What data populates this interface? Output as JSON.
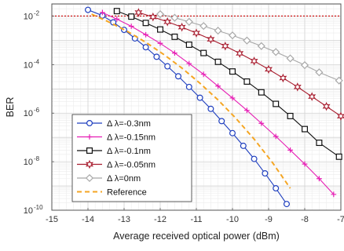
{
  "chart_data": {
    "type": "line",
    "title": "",
    "xlabel": "Average received optical power (dBm)",
    "ylabel": "BER",
    "xlim": [
      -15,
      -7
    ],
    "ylim_exponent": [
      -10,
      -1.5
    ],
    "y_scale": "log",
    "grid": true,
    "legend_placement": "lower-left",
    "x_ticks": [
      "-15",
      "-14",
      "-13",
      "-12",
      "-11",
      "-10",
      "-9",
      "-8",
      "-7"
    ],
    "y_ticks": [
      {
        "base": "10",
        "exp": "-2",
        "value": 0.01
      },
      {
        "base": "10",
        "exp": "-4",
        "value": 0.0001
      },
      {
        "base": "10",
        "exp": "-6",
        "value": 1e-06
      },
      {
        "base": "10",
        "exp": "-8",
        "value": 1e-08
      },
      {
        "base": "10",
        "exp": "-10",
        "value": 1e-10
      }
    ],
    "threshold": {
      "y": 0.01,
      "color": "#cc0000"
    },
    "series": [
      {
        "name": "Δ λ=-0.3nm",
        "color": "#1f3fbf",
        "marker": "circle",
        "dashed": false,
        "x": [
          -14.0,
          -13.6,
          -13.3,
          -13.0,
          -12.7,
          -12.4,
          -12.1,
          -11.8,
          -11.5,
          -11.2,
          -10.9,
          -10.6,
          -10.3,
          -10.0,
          -9.7,
          -9.4,
          -9.1,
          -8.8,
          -8.5,
          -8.2,
          -7.9,
          -7.55
        ],
        "y": [
          0.018,
          0.0105,
          0.0055,
          0.0027,
          0.0012,
          0.00052,
          0.00021,
          8.5e-05,
          3.3e-05,
          1.2e-05,
          4.3e-06,
          1.5e-06,
          4.7e-07,
          1.5e-07,
          4.5e-08,
          1.3e-08,
          3.3e-09,
          8e-10,
          1.8e-10,
          3.5e-11,
          6.5e-12,
          9e-13
        ]
      },
      {
        "name": "Δ λ=-0.15nm",
        "color": "#e61eb4",
        "marker": "plus",
        "dashed": false,
        "x": [
          -13.6,
          -13.2,
          -12.8,
          -12.4,
          -12.0,
          -11.6,
          -11.2,
          -10.8,
          -10.4,
          -10.0,
          -9.6,
          -9.2,
          -8.8,
          -8.4,
          -8.0,
          -7.6,
          -7.2
        ],
        "y": [
          0.014,
          0.0075,
          0.0038,
          0.0017,
          0.00075,
          0.0003,
          0.00011,
          4e-05,
          1.3e-05,
          4.2e-06,
          1.3e-06,
          3.8e-07,
          1.1e-07,
          3e-08,
          8e-09,
          2e-09,
          4.5e-10
        ]
      },
      {
        "name": "Δ λ=-0.1nm",
        "color": "#111111",
        "marker": "square",
        "dashed": false,
        "x": [
          -13.2,
          -12.8,
          -12.4,
          -12.0,
          -11.6,
          -11.2,
          -10.8,
          -10.4,
          -10.0,
          -9.6,
          -9.2,
          -8.8,
          -8.4,
          -8.0,
          -7.6,
          -7.05
        ],
        "y": [
          0.016,
          0.0095,
          0.0052,
          0.0028,
          0.0014,
          0.00066,
          0.0003,
          0.00013,
          5.2e-05,
          2e-05,
          7.2e-06,
          2.4e-06,
          7.6e-07,
          2.2e-07,
          6e-08,
          1.6e-08
        ]
      },
      {
        "name": "Δ λ=-0.05nm",
        "color": "#a81c2e",
        "marker": "star",
        "dashed": false,
        "x": [
          -12.6,
          -12.2,
          -11.8,
          -11.4,
          -11.0,
          -10.6,
          -10.2,
          -9.8,
          -9.4,
          -9.0,
          -8.6,
          -8.2,
          -7.8,
          -7.4,
          -7.0
        ],
        "y": [
          0.014,
          0.0092,
          0.0058,
          0.0035,
          0.002,
          0.0011,
          0.00058,
          0.00029,
          0.00014,
          6.4e-05,
          2.8e-05,
          1.2e-05,
          4.8e-06,
          1.9e-06,
          7.5e-07
        ]
      },
      {
        "name": "Δ λ=0nm",
        "color": "#a8a8a8",
        "marker": "diamond",
        "dashed": false,
        "x": [
          -12.0,
          -11.6,
          -11.2,
          -10.8,
          -10.4,
          -10.0,
          -9.6,
          -9.2,
          -8.8,
          -8.4,
          -8.0,
          -7.6,
          -7.05
        ],
        "y": [
          0.012,
          0.0085,
          0.0058,
          0.0039,
          0.0025,
          0.0016,
          0.00098,
          0.00058,
          0.00033,
          0.00018,
          9.5e-05,
          4.8e-05,
          2.2e-05
        ]
      },
      {
        "name": "Reference",
        "color": "#f5a623",
        "marker": "none",
        "dashed": true,
        "x": [
          -13.9,
          -13.4,
          -12.9,
          -12.4,
          -11.9,
          -11.4,
          -10.9,
          -10.4,
          -9.9,
          -9.4,
          -8.9,
          -8.4,
          -7.95
        ],
        "y": [
          0.012,
          0.0055,
          0.0023,
          0.00083,
          0.00026,
          7.2e-05,
          1.7e-05,
          3.5e-06,
          6e-07,
          8.5e-08,
          9.5e-09,
          8e-10,
          7e-11
        ]
      }
    ]
  }
}
